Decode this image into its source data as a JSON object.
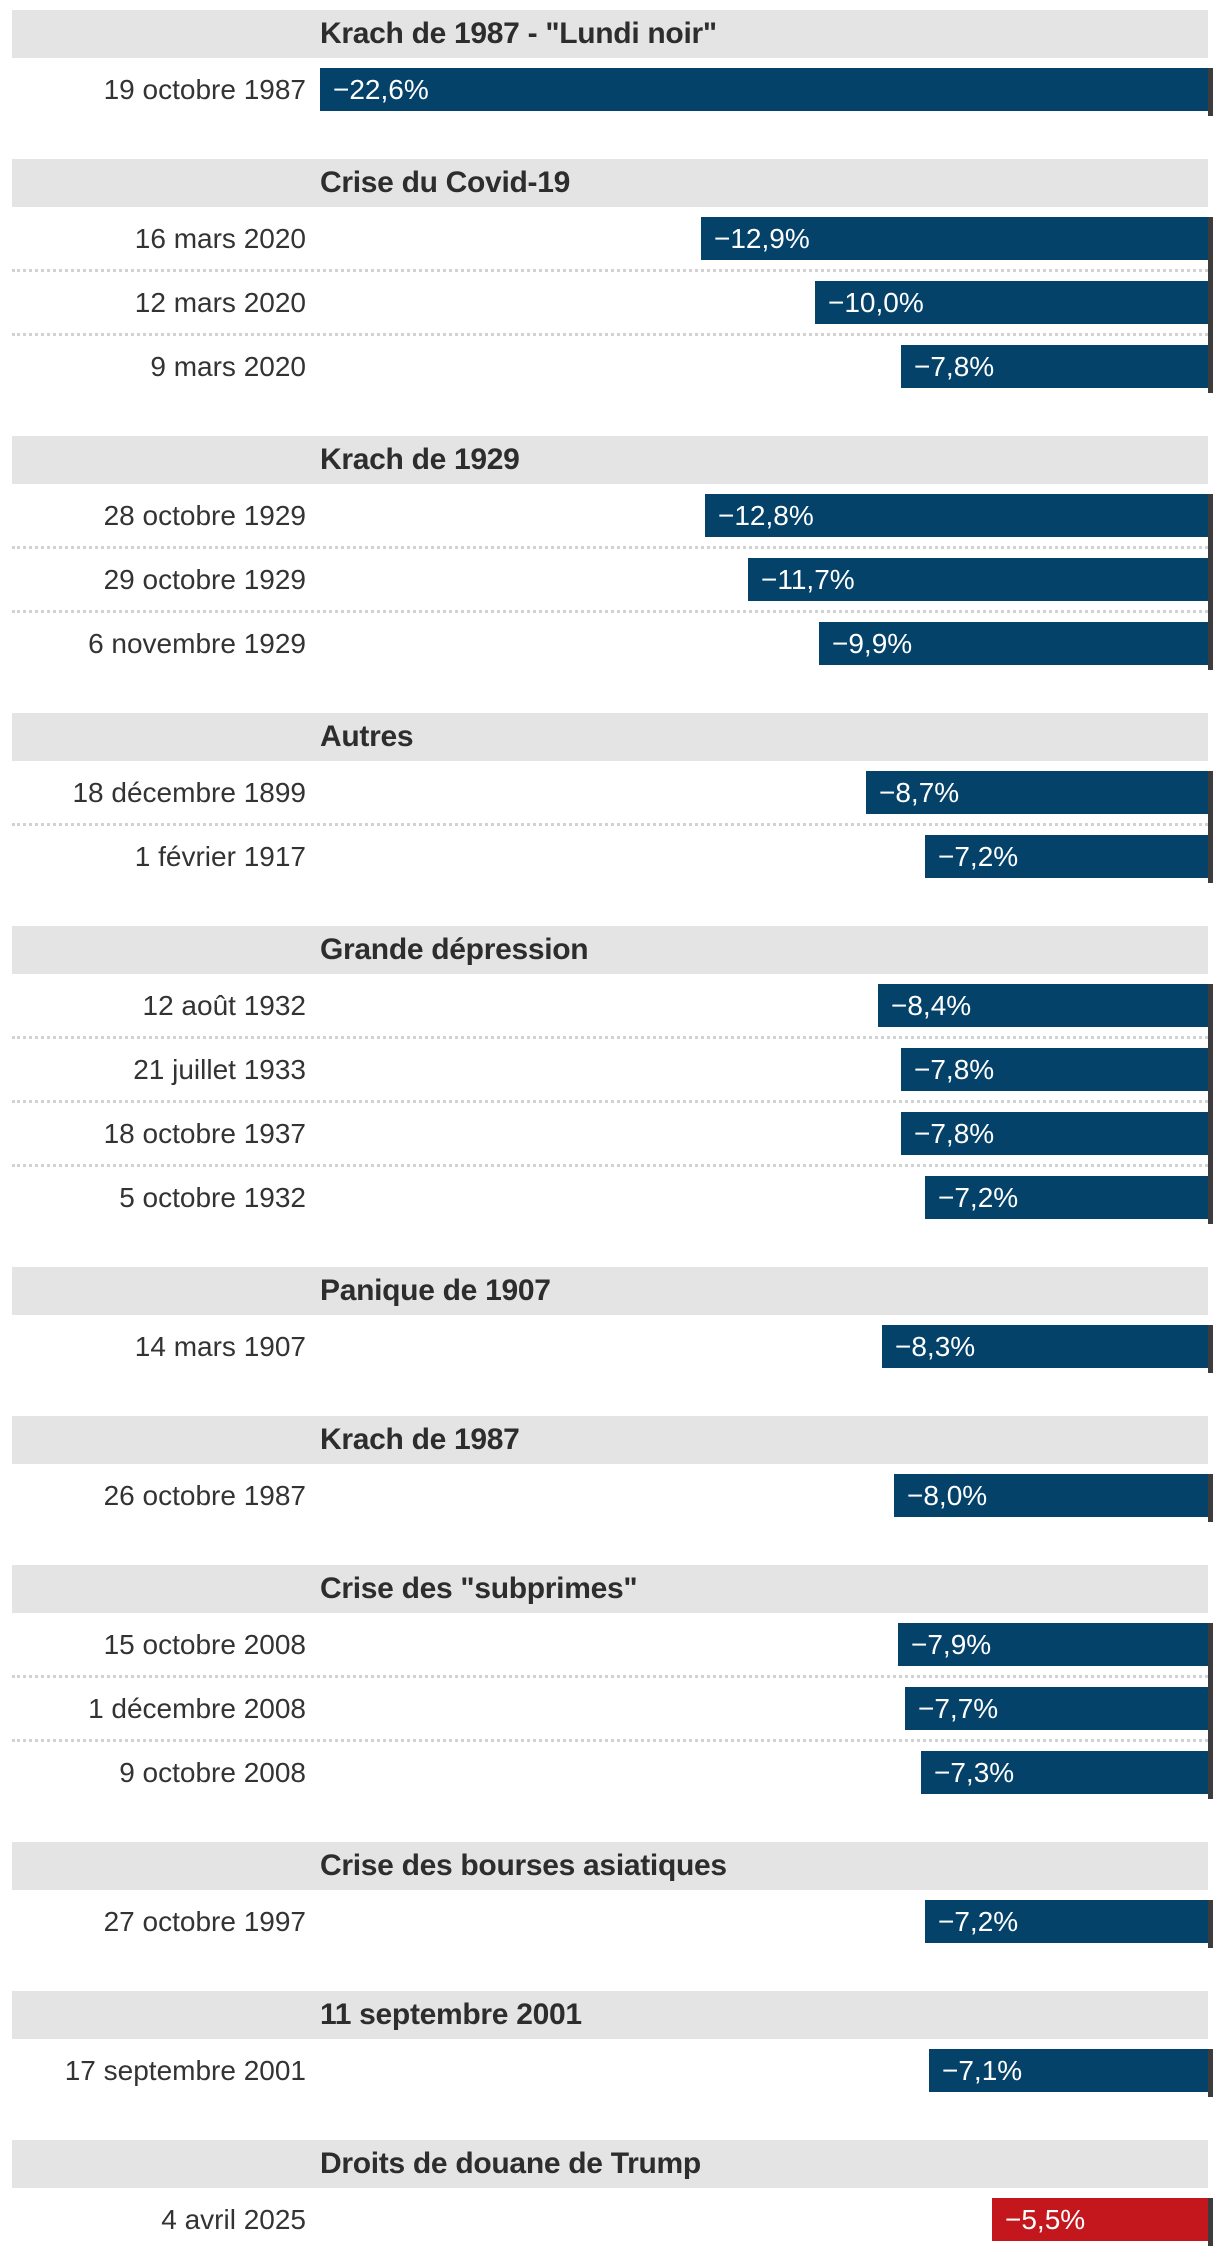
{
  "chart_data": {
    "type": "bar",
    "orientation": "horizontal",
    "unit": "%",
    "value_suffix": "%",
    "decimal_separator": ",",
    "axis": {
      "zero_at_right": true,
      "gridlines": false,
      "tick_labels": false
    },
    "legend": "none",
    "colors": {
      "bar": "#04426a",
      "highlight_bar": "#c4171d",
      "header_band": "#e4e4e4",
      "axis_line": "#3c3c3c",
      "text": "#333333"
    },
    "groups": [
      {
        "title": "Krach de 1987 - \"Lundi noir\"",
        "rows": [
          {
            "date": "19 octobre 1987",
            "label": "−22,6%",
            "value": -22.6,
            "highlight": false
          }
        ]
      },
      {
        "title": "Crise du Covid-19",
        "rows": [
          {
            "date": "16 mars 2020",
            "label": "−12,9%",
            "value": -12.9,
            "highlight": false
          },
          {
            "date": "12 mars 2020",
            "label": "−10,0%",
            "value": -10.0,
            "highlight": false
          },
          {
            "date": "9 mars 2020",
            "label": "−7,8%",
            "value": -7.8,
            "highlight": false
          }
        ]
      },
      {
        "title": "Krach de 1929",
        "rows": [
          {
            "date": "28 octobre 1929",
            "label": "−12,8%",
            "value": -12.8,
            "highlight": false
          },
          {
            "date": "29 octobre 1929",
            "label": "−11,7%",
            "value": -11.7,
            "highlight": false
          },
          {
            "date": "6 novembre 1929",
            "label": "−9,9%",
            "value": -9.9,
            "highlight": false
          }
        ]
      },
      {
        "title": "Autres",
        "rows": [
          {
            "date": "18 décembre 1899",
            "label": "−8,7%",
            "value": -8.7,
            "highlight": false
          },
          {
            "date": "1 février 1917",
            "label": "−7,2%",
            "value": -7.2,
            "highlight": false
          }
        ]
      },
      {
        "title": "Grande dépression",
        "rows": [
          {
            "date": "12 août 1932",
            "label": "−8,4%",
            "value": -8.4,
            "highlight": false
          },
          {
            "date": "21 juillet 1933",
            "label": "−7,8%",
            "value": -7.8,
            "highlight": false
          },
          {
            "date": "18 octobre 1937",
            "label": "−7,8%",
            "value": -7.8,
            "highlight": false
          },
          {
            "date": "5 octobre 1932",
            "label": "−7,2%",
            "value": -7.2,
            "highlight": false
          }
        ]
      },
      {
        "title": "Panique de 1907",
        "rows": [
          {
            "date": "14 mars 1907",
            "label": "−8,3%",
            "value": -8.3,
            "highlight": false
          }
        ]
      },
      {
        "title": "Krach de 1987",
        "rows": [
          {
            "date": "26 octobre 1987",
            "label": "−8,0%",
            "value": -8.0,
            "highlight": false
          }
        ]
      },
      {
        "title": "Crise des \"subprimes\"",
        "rows": [
          {
            "date": "15 octobre 2008",
            "label": "−7,9%",
            "value": -7.9,
            "highlight": false
          },
          {
            "date": "1 décembre 2008",
            "label": "−7,7%",
            "value": -7.7,
            "highlight": false
          },
          {
            "date": "9 octobre 2008",
            "label": "−7,3%",
            "value": -7.3,
            "highlight": false
          }
        ]
      },
      {
        "title": "Crise des bourses asiatiques",
        "rows": [
          {
            "date": "27 octobre 1997",
            "label": "−7,2%",
            "value": -7.2,
            "highlight": false
          }
        ]
      },
      {
        "title": "11 septembre 2001",
        "rows": [
          {
            "date": "17 septembre 2001",
            "label": "−7,1%",
            "value": -7.1,
            "highlight": false
          }
        ]
      },
      {
        "title": "Droits de douane de Trump",
        "rows": [
          {
            "date": "4 avril 2025",
            "label": "−5,5%",
            "value": -5.5,
            "highlight": true
          }
        ]
      }
    ]
  }
}
